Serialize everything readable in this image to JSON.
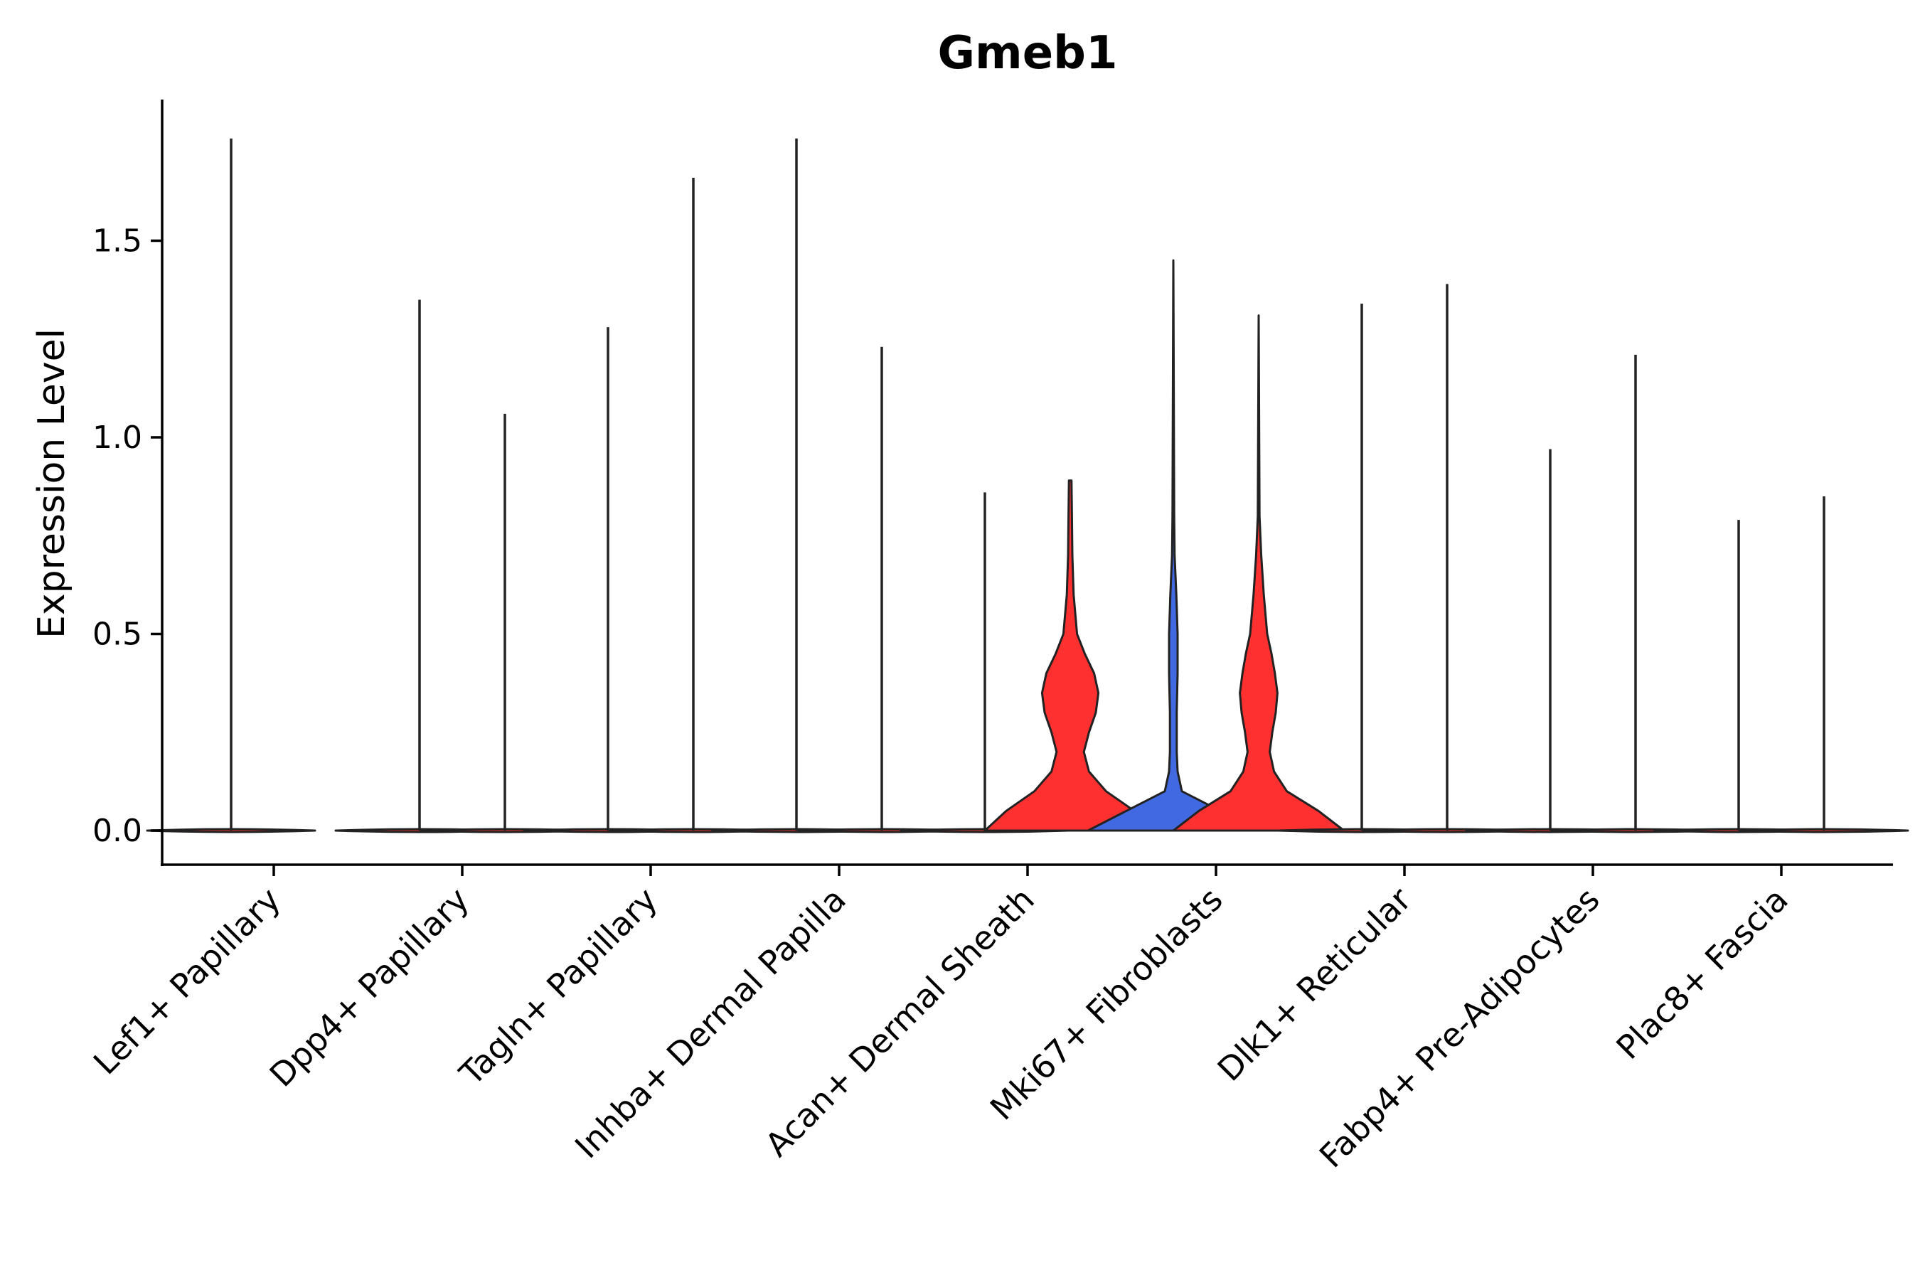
{
  "chart_data": {
    "type": "violin",
    "title": "Gmeb1",
    "xlabel": "",
    "ylabel": "Expression Level",
    "ylim": [
      -0.09,
      1.85
    ],
    "yticks": [
      0.0,
      0.5,
      1.0,
      1.5
    ],
    "ytick_labels": [
      "0.0",
      "0.5",
      "1.0",
      "1.5"
    ],
    "legend": "none",
    "grid": false,
    "colors": {
      "group1": "#FF3030",
      "group2": "#4169E1",
      "outline": "#222222"
    },
    "categories": [
      "Lef1+ Papillary",
      "Dpp4+ Papillary",
      "Tagln+ Papillary",
      "Inhba+ Dermal Papilla",
      "Acan+ Dermal Sheath",
      "Mki67+ Fibroblasts",
      "Dlk1+ Reticular",
      "Fabp4+ Pre-Adipocytes",
      "Plac8+ Fascia"
    ],
    "series": [
      {
        "name": "group1",
        "color": "#FF3030",
        "max_values": [
          1.76,
          1.35,
          1.28,
          1.76,
          0.86,
          1.45,
          1.34,
          0.97,
          0.79
        ],
        "filled": [
          false,
          false,
          false,
          false,
          false,
          true,
          false,
          false,
          false
        ]
      },
      {
        "name": "group2",
        "color": "#FF3030",
        "max_values": [
          null,
          1.06,
          1.66,
          1.23,
          0.89,
          1.31,
          1.39,
          1.21,
          0.85
        ],
        "filled": [
          false,
          false,
          false,
          false,
          true,
          true,
          false,
          false,
          false
        ]
      }
    ],
    "violin_shapes": {
      "Acan+ Dermal Sheath|group2": {
        "color": "#FF3030",
        "profile": [
          [
            0.0,
            1.0
          ],
          [
            0.05,
            0.75
          ],
          [
            0.1,
            0.42
          ],
          [
            0.15,
            0.22
          ],
          [
            0.2,
            0.16
          ],
          [
            0.25,
            0.22
          ],
          [
            0.3,
            0.3
          ],
          [
            0.35,
            0.33
          ],
          [
            0.4,
            0.28
          ],
          [
            0.45,
            0.17
          ],
          [
            0.5,
            0.08
          ],
          [
            0.6,
            0.04
          ],
          [
            0.7,
            0.025
          ],
          [
            0.8,
            0.02
          ],
          [
            0.89,
            0.015
          ]
        ]
      },
      "Mki67+ Fibroblasts|group1": {
        "color": "#4169E1",
        "profile": [
          [
            0.0,
            1.0
          ],
          [
            0.05,
            0.55
          ],
          [
            0.1,
            0.1
          ],
          [
            0.15,
            0.05
          ],
          [
            0.2,
            0.04
          ],
          [
            0.3,
            0.04
          ],
          [
            0.4,
            0.05
          ],
          [
            0.5,
            0.05
          ],
          [
            0.6,
            0.035
          ],
          [
            0.7,
            0.015
          ],
          [
            0.8,
            0.01
          ],
          [
            1.45,
            0.0
          ]
        ]
      },
      "Mki67+ Fibroblasts|group2": {
        "color": "#FF3030",
        "profile": [
          [
            0.0,
            1.0
          ],
          [
            0.05,
            0.7
          ],
          [
            0.1,
            0.33
          ],
          [
            0.15,
            0.18
          ],
          [
            0.2,
            0.13
          ],
          [
            0.25,
            0.16
          ],
          [
            0.3,
            0.2
          ],
          [
            0.35,
            0.22
          ],
          [
            0.4,
            0.19
          ],
          [
            0.45,
            0.15
          ],
          [
            0.5,
            0.1
          ],
          [
            0.6,
            0.06
          ],
          [
            0.7,
            0.03
          ],
          [
            0.8,
            0.01
          ],
          [
            1.31,
            0.0
          ]
        ]
      }
    }
  }
}
